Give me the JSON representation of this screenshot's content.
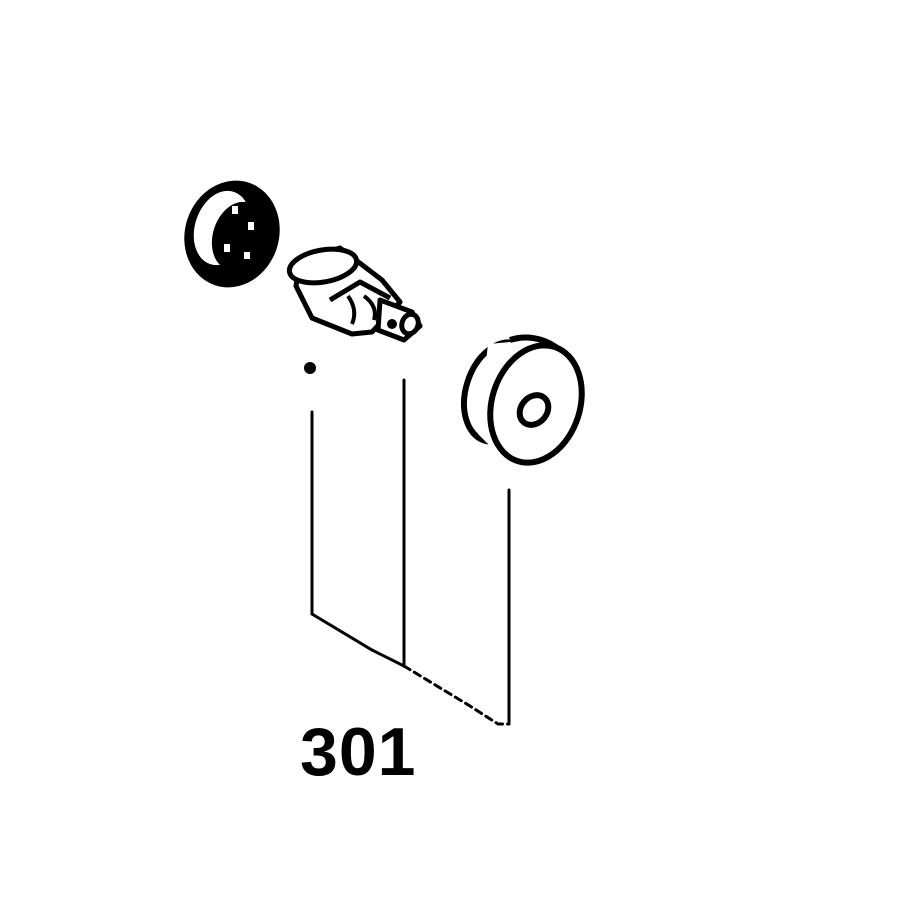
{
  "diagram": {
    "callout_label": "301",
    "parts": [
      {
        "name": "cap-part",
        "icon": "disc-cap-icon"
      },
      {
        "name": "valve-part",
        "icon": "stem-valve-icon"
      },
      {
        "name": "washer-part",
        "icon": "washer-icon"
      }
    ],
    "colors": {
      "ink": "#000000",
      "paper": "#ffffff"
    }
  }
}
